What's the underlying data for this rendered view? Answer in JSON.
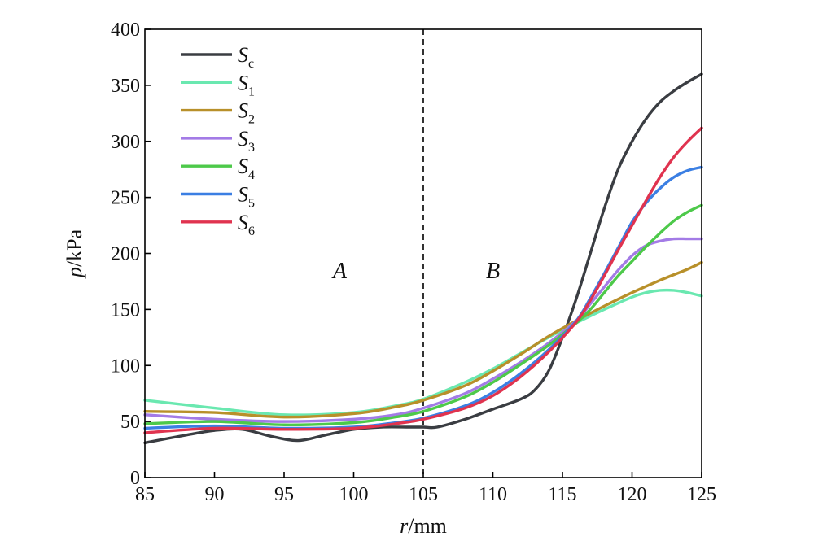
{
  "chart_data": {
    "type": "line",
    "title": "",
    "xlabel": {
      "var": "r",
      "unit": "/mm"
    },
    "ylabel": {
      "var": "p",
      "unit": "/kPa"
    },
    "xlim": [
      85,
      125
    ],
    "ylim": [
      0,
      400
    ],
    "xticks": [
      85,
      90,
      95,
      100,
      105,
      110,
      115,
      120,
      125
    ],
    "yticks": [
      0,
      50,
      100,
      150,
      200,
      250,
      300,
      350,
      400
    ],
    "grid": false,
    "legend_position": "top-left",
    "divider": {
      "x": 105,
      "style": "dashed"
    },
    "regions": [
      {
        "label": "A",
        "x": 99,
        "y": 178
      },
      {
        "label": "B",
        "x": 110,
        "y": 178
      }
    ],
    "series": [
      {
        "name": "S",
        "sub": "c",
        "color": "#3a3d42",
        "x": [
          85,
          88,
          90,
          92,
          94,
          96,
          98,
          100,
          102,
          104,
          105,
          106,
          108,
          110,
          112,
          113,
          114,
          115,
          116,
          117,
          118,
          119,
          120,
          121,
          122,
          123,
          124,
          125
        ],
        "y": [
          31,
          38,
          42,
          43,
          37,
          33,
          38,
          43,
          45,
          45,
          45,
          45,
          52,
          61,
          70,
          78,
          95,
          125,
          160,
          200,
          240,
          275,
          300,
          320,
          335,
          345,
          353,
          360
        ]
      },
      {
        "name": "S",
        "sub": "1",
        "color": "#6ae8b0",
        "x": [
          85,
          90,
          95,
          100,
          103,
          105,
          108,
          110,
          112,
          114,
          116,
          118,
          120,
          121,
          122,
          123,
          124,
          125
        ],
        "y": [
          69,
          62,
          56,
          58,
          64,
          70,
          85,
          97,
          111,
          125,
          138,
          150,
          161,
          165,
          167,
          167,
          165,
          162
        ]
      },
      {
        "name": "S",
        "sub": "2",
        "color": "#b8902a",
        "x": [
          85,
          90,
          95,
          100,
          103,
          105,
          108,
          110,
          112,
          114,
          116,
          118,
          120,
          122,
          124,
          125
        ],
        "y": [
          59,
          58,
          54,
          57,
          63,
          69,
          82,
          95,
          110,
          126,
          140,
          153,
          165,
          176,
          186,
          192
        ]
      },
      {
        "name": "S",
        "sub": "3",
        "color": "#a37be6",
        "x": [
          85,
          90,
          95,
          100,
          103,
          105,
          108,
          110,
          112,
          114,
          116,
          117,
          118,
          119,
          120,
          121,
          122,
          123,
          124,
          125
        ],
        "y": [
          56,
          52,
          50,
          52,
          56,
          62,
          75,
          88,
          103,
          120,
          140,
          155,
          170,
          185,
          198,
          207,
          211,
          213,
          213,
          213
        ]
      },
      {
        "name": "S",
        "sub": "4",
        "color": "#4dc94a",
        "x": [
          85,
          90,
          95,
          100,
          103,
          105,
          108,
          110,
          112,
          114,
          116,
          117,
          118,
          119,
          120,
          121,
          122,
          123,
          124,
          125
        ],
        "y": [
          48,
          50,
          47,
          49,
          54,
          59,
          72,
          85,
          101,
          118,
          138,
          150,
          165,
          180,
          193,
          206,
          218,
          229,
          237,
          243
        ]
      },
      {
        "name": "S",
        "sub": "5",
        "color": "#3b7fe3",
        "x": [
          85,
          90,
          95,
          100,
          103,
          105,
          108,
          110,
          112,
          114,
          116,
          117,
          118,
          119,
          120,
          121,
          122,
          123,
          124,
          125
        ],
        "y": [
          44,
          46,
          44,
          45,
          49,
          53,
          64,
          76,
          93,
          114,
          140,
          160,
          182,
          205,
          228,
          245,
          258,
          268,
          274,
          277
        ]
      },
      {
        "name": "S",
        "sub": "6",
        "color": "#e0334f",
        "x": [
          85,
          90,
          95,
          100,
          103,
          105,
          108,
          110,
          112,
          114,
          116,
          117,
          118,
          119,
          120,
          121,
          122,
          123,
          124,
          125
        ],
        "y": [
          40,
          44,
          43,
          44,
          48,
          52,
          62,
          73,
          90,
          112,
          139,
          158,
          180,
          203,
          225,
          247,
          268,
          286,
          300,
          312
        ]
      }
    ]
  }
}
